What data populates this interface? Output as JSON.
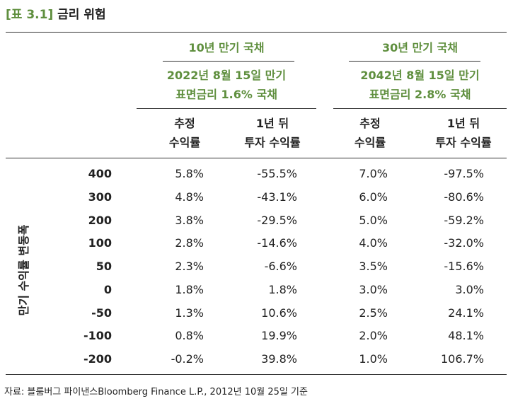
{
  "title": {
    "tag": "[표 3.1]",
    "name": "금리 위험"
  },
  "groups": [
    {
      "name": "10년 만기 국채",
      "desc1": "2022년 8월 15일 만기",
      "desc2": "표면금리 1.6% 국채"
    },
    {
      "name": "30년 만기 국채",
      "desc1": "2042년 8월 15일 만기",
      "desc2": "표면금리 2.8% 국채"
    }
  ],
  "columns": [
    {
      "line1": "추정",
      "line2": "수익률"
    },
    {
      "line1": "1년 뒤",
      "line2": "투자 수익률"
    },
    {
      "line1": "추정",
      "line2": "수익률"
    },
    {
      "line1": "1년 뒤",
      "line2": "투자 수익률"
    }
  ],
  "axis_label": "만기 수익률 변동폭",
  "rows": [
    {
      "label": "400",
      "values": [
        "5.8%",
        "-55.5%",
        "7.0%",
        "-97.5%"
      ]
    },
    {
      "label": "300",
      "values": [
        "4.8%",
        "-43.1%",
        "6.0%",
        "-80.6%"
      ]
    },
    {
      "label": "200",
      "values": [
        "3.8%",
        "-29.5%",
        "5.0%",
        "-59.2%"
      ]
    },
    {
      "label": "100",
      "values": [
        "2.8%",
        "-14.6%",
        "4.0%",
        "-32.0%"
      ]
    },
    {
      "label": "50",
      "values": [
        "2.3%",
        "-6.6%",
        "3.5%",
        "-15.6%"
      ]
    },
    {
      "label": "0",
      "values": [
        "1.8%",
        "1.8%",
        "3.0%",
        "3.0%"
      ]
    },
    {
      "label": "-50",
      "values": [
        "1.3%",
        "10.6%",
        "2.5%",
        "24.1%"
      ]
    },
    {
      "label": "-100",
      "values": [
        "0.8%",
        "19.9%",
        "2.0%",
        "48.1%"
      ]
    },
    {
      "label": "-200",
      "values": [
        "-0.2%",
        "39.8%",
        "1.0%",
        "106.7%"
      ]
    }
  ],
  "source": "자료: 블룸버그 파이낸스Bloomberg Finance L.P., 2012년 10월 25일 기준"
}
